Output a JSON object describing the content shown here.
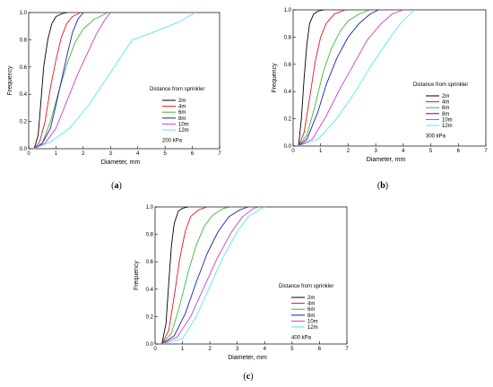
{
  "chart_data": [
    {
      "panel": "(a)",
      "type": "line",
      "xlabel": "Diameter, mm",
      "ylabel": "Frequency",
      "xlim": [
        0,
        7
      ],
      "ylim": [
        0,
        1.0
      ],
      "xticks": [
        "0",
        "1",
        "2",
        "3",
        "4",
        "5",
        "6",
        "7"
      ],
      "yticks": [
        "0.0",
        "0.2",
        "0.4",
        "0.6",
        "0.8",
        "1.0"
      ],
      "legend_title": "Distance from sprinkler",
      "pressure": "200 kPa",
      "series": [
        {
          "name": "2m",
          "color": "#000000",
          "points": [
            [
              0.2,
              0
            ],
            [
              0.35,
              0.1
            ],
            [
              0.45,
              0.35
            ],
            [
              0.55,
              0.6
            ],
            [
              0.7,
              0.8
            ],
            [
              0.85,
              0.92
            ],
            [
              1.0,
              0.97
            ],
            [
              1.2,
              0.99
            ],
            [
              1.4,
              1.0
            ]
          ]
        },
        {
          "name": "4m",
          "color": "#e8141e",
          "points": [
            [
              0.2,
              0
            ],
            [
              0.4,
              0.05
            ],
            [
              0.6,
              0.2
            ],
            [
              0.8,
              0.45
            ],
            [
              1.0,
              0.65
            ],
            [
              1.2,
              0.82
            ],
            [
              1.4,
              0.92
            ],
            [
              1.6,
              0.97
            ],
            [
              1.9,
              1.0
            ]
          ]
        },
        {
          "name": "6m",
          "color": "#3cb93c",
          "points": [
            [
              0.2,
              0
            ],
            [
              0.5,
              0.04
            ],
            [
              0.8,
              0.2
            ],
            [
              1.1,
              0.42
            ],
            [
              1.4,
              0.62
            ],
            [
              1.7,
              0.78
            ],
            [
              2.0,
              0.88
            ],
            [
              2.4,
              0.95
            ],
            [
              2.9,
              1.0
            ]
          ]
        },
        {
          "name": "8m",
          "color": "#1e1eb4",
          "points": [
            [
              0.2,
              0
            ],
            [
              0.5,
              0.04
            ],
            [
              0.8,
              0.15
            ],
            [
              1.0,
              0.32
            ],
            [
              1.2,
              0.5
            ],
            [
              1.4,
              0.68
            ],
            [
              1.6,
              0.85
            ],
            [
              1.8,
              0.95
            ],
            [
              2.0,
              1.0
            ]
          ]
        },
        {
          "name": "10m",
          "color": "#d23cc8",
          "points": [
            [
              0.2,
              0
            ],
            [
              0.6,
              0.04
            ],
            [
              1.0,
              0.15
            ],
            [
              1.4,
              0.35
            ],
            [
              1.8,
              0.55
            ],
            [
              2.2,
              0.72
            ],
            [
              2.5,
              0.85
            ],
            [
              2.8,
              0.95
            ],
            [
              3.0,
              1.0
            ]
          ]
        },
        {
          "name": "12m",
          "color": "#5ae6f0",
          "points": [
            [
              0.2,
              0
            ],
            [
              0.8,
              0.05
            ],
            [
              1.5,
              0.15
            ],
            [
              2.2,
              0.32
            ],
            [
              2.8,
              0.5
            ],
            [
              3.3,
              0.65
            ],
            [
              3.8,
              0.8
            ],
            [
              4.5,
              0.85
            ],
            [
              5.5,
              0.93
            ],
            [
              6.1,
              1.0
            ]
          ]
        }
      ]
    },
    {
      "panel": "(b)",
      "type": "line",
      "xlabel": "Diameter, mm",
      "ylabel": "Frequency",
      "xlim": [
        0,
        7
      ],
      "ylim": [
        0,
        1.0
      ],
      "xticks": [
        "0",
        "1",
        "2",
        "3",
        "4",
        "5",
        "6",
        "7"
      ],
      "yticks": [
        "0.0",
        "0.2",
        "0.4",
        "0.6",
        "0.8",
        "1.0"
      ],
      "legend_title": "Distance from sprinkler",
      "pressure": "300 kPa",
      "series": [
        {
          "name": "2m",
          "color": "#000000",
          "points": [
            [
              0.2,
              0
            ],
            [
              0.3,
              0.2
            ],
            [
              0.4,
              0.5
            ],
            [
              0.5,
              0.75
            ],
            [
              0.6,
              0.9
            ],
            [
              0.75,
              0.97
            ],
            [
              0.9,
              0.99
            ],
            [
              1.1,
              1.0
            ]
          ]
        },
        {
          "name": "4m",
          "color": "#e8141e",
          "points": [
            [
              0.2,
              0
            ],
            [
              0.4,
              0.1
            ],
            [
              0.6,
              0.35
            ],
            [
              0.8,
              0.62
            ],
            [
              1.0,
              0.8
            ],
            [
              1.2,
              0.9
            ],
            [
              1.5,
              0.97
            ],
            [
              1.9,
              1.0
            ]
          ]
        },
        {
          "name": "6m",
          "color": "#3cb93c",
          "points": [
            [
              0.2,
              0
            ],
            [
              0.5,
              0.08
            ],
            [
              0.8,
              0.3
            ],
            [
              1.1,
              0.55
            ],
            [
              1.4,
              0.72
            ],
            [
              1.7,
              0.84
            ],
            [
              2.0,
              0.92
            ],
            [
              2.4,
              0.97
            ],
            [
              2.8,
              1.0
            ]
          ]
        },
        {
          "name": "8m",
          "color": "#1e1eb4",
          "points": [
            [
              0.2,
              0
            ],
            [
              0.5,
              0.05
            ],
            [
              0.9,
              0.25
            ],
            [
              1.2,
              0.45
            ],
            [
              1.6,
              0.65
            ],
            [
              2.0,
              0.8
            ],
            [
              2.4,
              0.9
            ],
            [
              2.8,
              0.97
            ],
            [
              3.1,
              1.0
            ]
          ]
        },
        {
          "name": "10m",
          "color": "#d23cc8",
          "points": [
            [
              0.2,
              0
            ],
            [
              0.7,
              0.05
            ],
            [
              1.2,
              0.22
            ],
            [
              1.7,
              0.42
            ],
            [
              2.2,
              0.6
            ],
            [
              2.7,
              0.78
            ],
            [
              3.2,
              0.9
            ],
            [
              3.6,
              0.97
            ],
            [
              4.0,
              1.0
            ]
          ]
        },
        {
          "name": "12m",
          "color": "#5ae6f0",
          "points": [
            [
              0.2,
              0
            ],
            [
              0.9,
              0.05
            ],
            [
              1.5,
              0.18
            ],
            [
              2.2,
              0.38
            ],
            [
              2.8,
              0.58
            ],
            [
              3.4,
              0.76
            ],
            [
              3.9,
              0.9
            ],
            [
              4.2,
              0.96
            ],
            [
              4.4,
              1.0
            ]
          ]
        }
      ]
    },
    {
      "panel": "(c)",
      "type": "line",
      "xlabel": "Diameter, mm",
      "ylabel": "Frequency",
      "xlim": [
        0,
        7
      ],
      "ylim": [
        0,
        1.0
      ],
      "xticks": [
        "0",
        "1",
        "2",
        "3",
        "4",
        "5",
        "6",
        "7"
      ],
      "yticks": [
        "0.0",
        "0.2",
        "0.4",
        "0.6",
        "0.8",
        "1.0"
      ],
      "legend_title": "Distance from sprinkler",
      "pressure": "400 kPa",
      "series": [
        {
          "name": "2m",
          "color": "#000000",
          "points": [
            [
              0.25,
              0
            ],
            [
              0.4,
              0.15
            ],
            [
              0.5,
              0.45
            ],
            [
              0.6,
              0.72
            ],
            [
              0.7,
              0.88
            ],
            [
              0.85,
              0.97
            ],
            [
              1.0,
              0.99
            ],
            [
              1.2,
              1.0
            ]
          ]
        },
        {
          "name": "4m",
          "color": "#e8141e",
          "points": [
            [
              0.25,
              0
            ],
            [
              0.5,
              0.1
            ],
            [
              0.7,
              0.35
            ],
            [
              0.9,
              0.62
            ],
            [
              1.1,
              0.82
            ],
            [
              1.3,
              0.93
            ],
            [
              1.6,
              0.98
            ],
            [
              1.9,
              1.0
            ]
          ]
        },
        {
          "name": "6m",
          "color": "#3cb93c",
          "points": [
            [
              0.25,
              0
            ],
            [
              0.6,
              0.08
            ],
            [
              0.9,
              0.28
            ],
            [
              1.2,
              0.52
            ],
            [
              1.5,
              0.72
            ],
            [
              1.8,
              0.86
            ],
            [
              2.1,
              0.94
            ],
            [
              2.5,
              0.99
            ],
            [
              2.8,
              1.0
            ]
          ]
        },
        {
          "name": "8m",
          "color": "#1e1eb4",
          "points": [
            [
              0.25,
              0
            ],
            [
              0.7,
              0.06
            ],
            [
              1.1,
              0.22
            ],
            [
              1.5,
              0.45
            ],
            [
              1.9,
              0.66
            ],
            [
              2.3,
              0.82
            ],
            [
              2.7,
              0.93
            ],
            [
              3.1,
              0.98
            ],
            [
              3.4,
              1.0
            ]
          ]
        },
        {
          "name": "10m",
          "color": "#d23cc8",
          "points": [
            [
              0.25,
              0
            ],
            [
              0.8,
              0.05
            ],
            [
              1.3,
              0.2
            ],
            [
              1.8,
              0.42
            ],
            [
              2.3,
              0.64
            ],
            [
              2.8,
              0.82
            ],
            [
              3.2,
              0.93
            ],
            [
              3.6,
              0.99
            ],
            [
              3.8,
              1.0
            ]
          ]
        },
        {
          "name": "12m",
          "color": "#5ae6f0",
          "points": [
            [
              0.3,
              0
            ],
            [
              1.0,
              0.04
            ],
            [
              1.5,
              0.2
            ],
            [
              2.0,
              0.42
            ],
            [
              2.5,
              0.64
            ],
            [
              3.0,
              0.82
            ],
            [
              3.4,
              0.93
            ],
            [
              3.8,
              0.98
            ],
            [
              4.0,
              1.0
            ]
          ]
        }
      ]
    }
  ]
}
